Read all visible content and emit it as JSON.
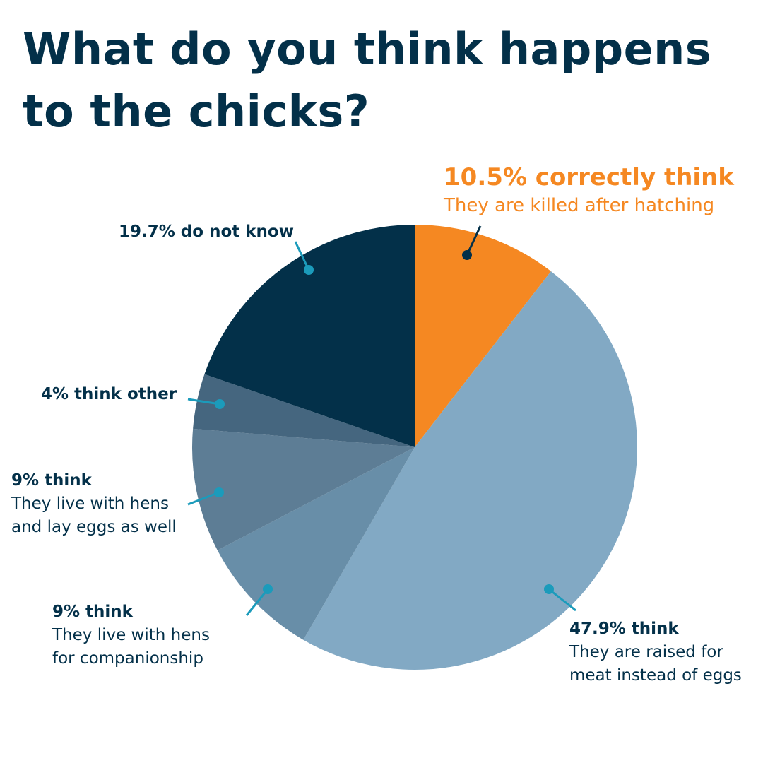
{
  "title": "What do you think happens to the chicks?",
  "chart_data": {
    "type": "pie",
    "start": "12 o'clock",
    "direction": "clockwise",
    "slices": [
      {
        "value": 10.5,
        "color": "#f58822",
        "label_pct": "10.5% correctly think",
        "label_desc": "They are killed after hatching"
      },
      {
        "value": 47.9,
        "color": "#82a9c4",
        "label_pct": "47.9% think",
        "label_desc": "They are raised for meat instead of eggs"
      },
      {
        "value": 9,
        "color": "#688ea8",
        "label_pct": "9% think",
        "label_desc": "They live with hens for companionship"
      },
      {
        "value": 9,
        "color": "#5d7d95",
        "label_pct": "9% think",
        "label_desc": "They live with hens and lay eggs as well"
      },
      {
        "value": 4,
        "color": "#45667f",
        "label_pct": "4% think other",
        "label_desc": ""
      },
      {
        "value": 19.7,
        "color": "#033049",
        "label_pct": "19.7% do not know",
        "label_desc": ""
      }
    ],
    "leader_colors": {
      "correct": "#033049",
      "others": "#1b9bbb"
    }
  }
}
